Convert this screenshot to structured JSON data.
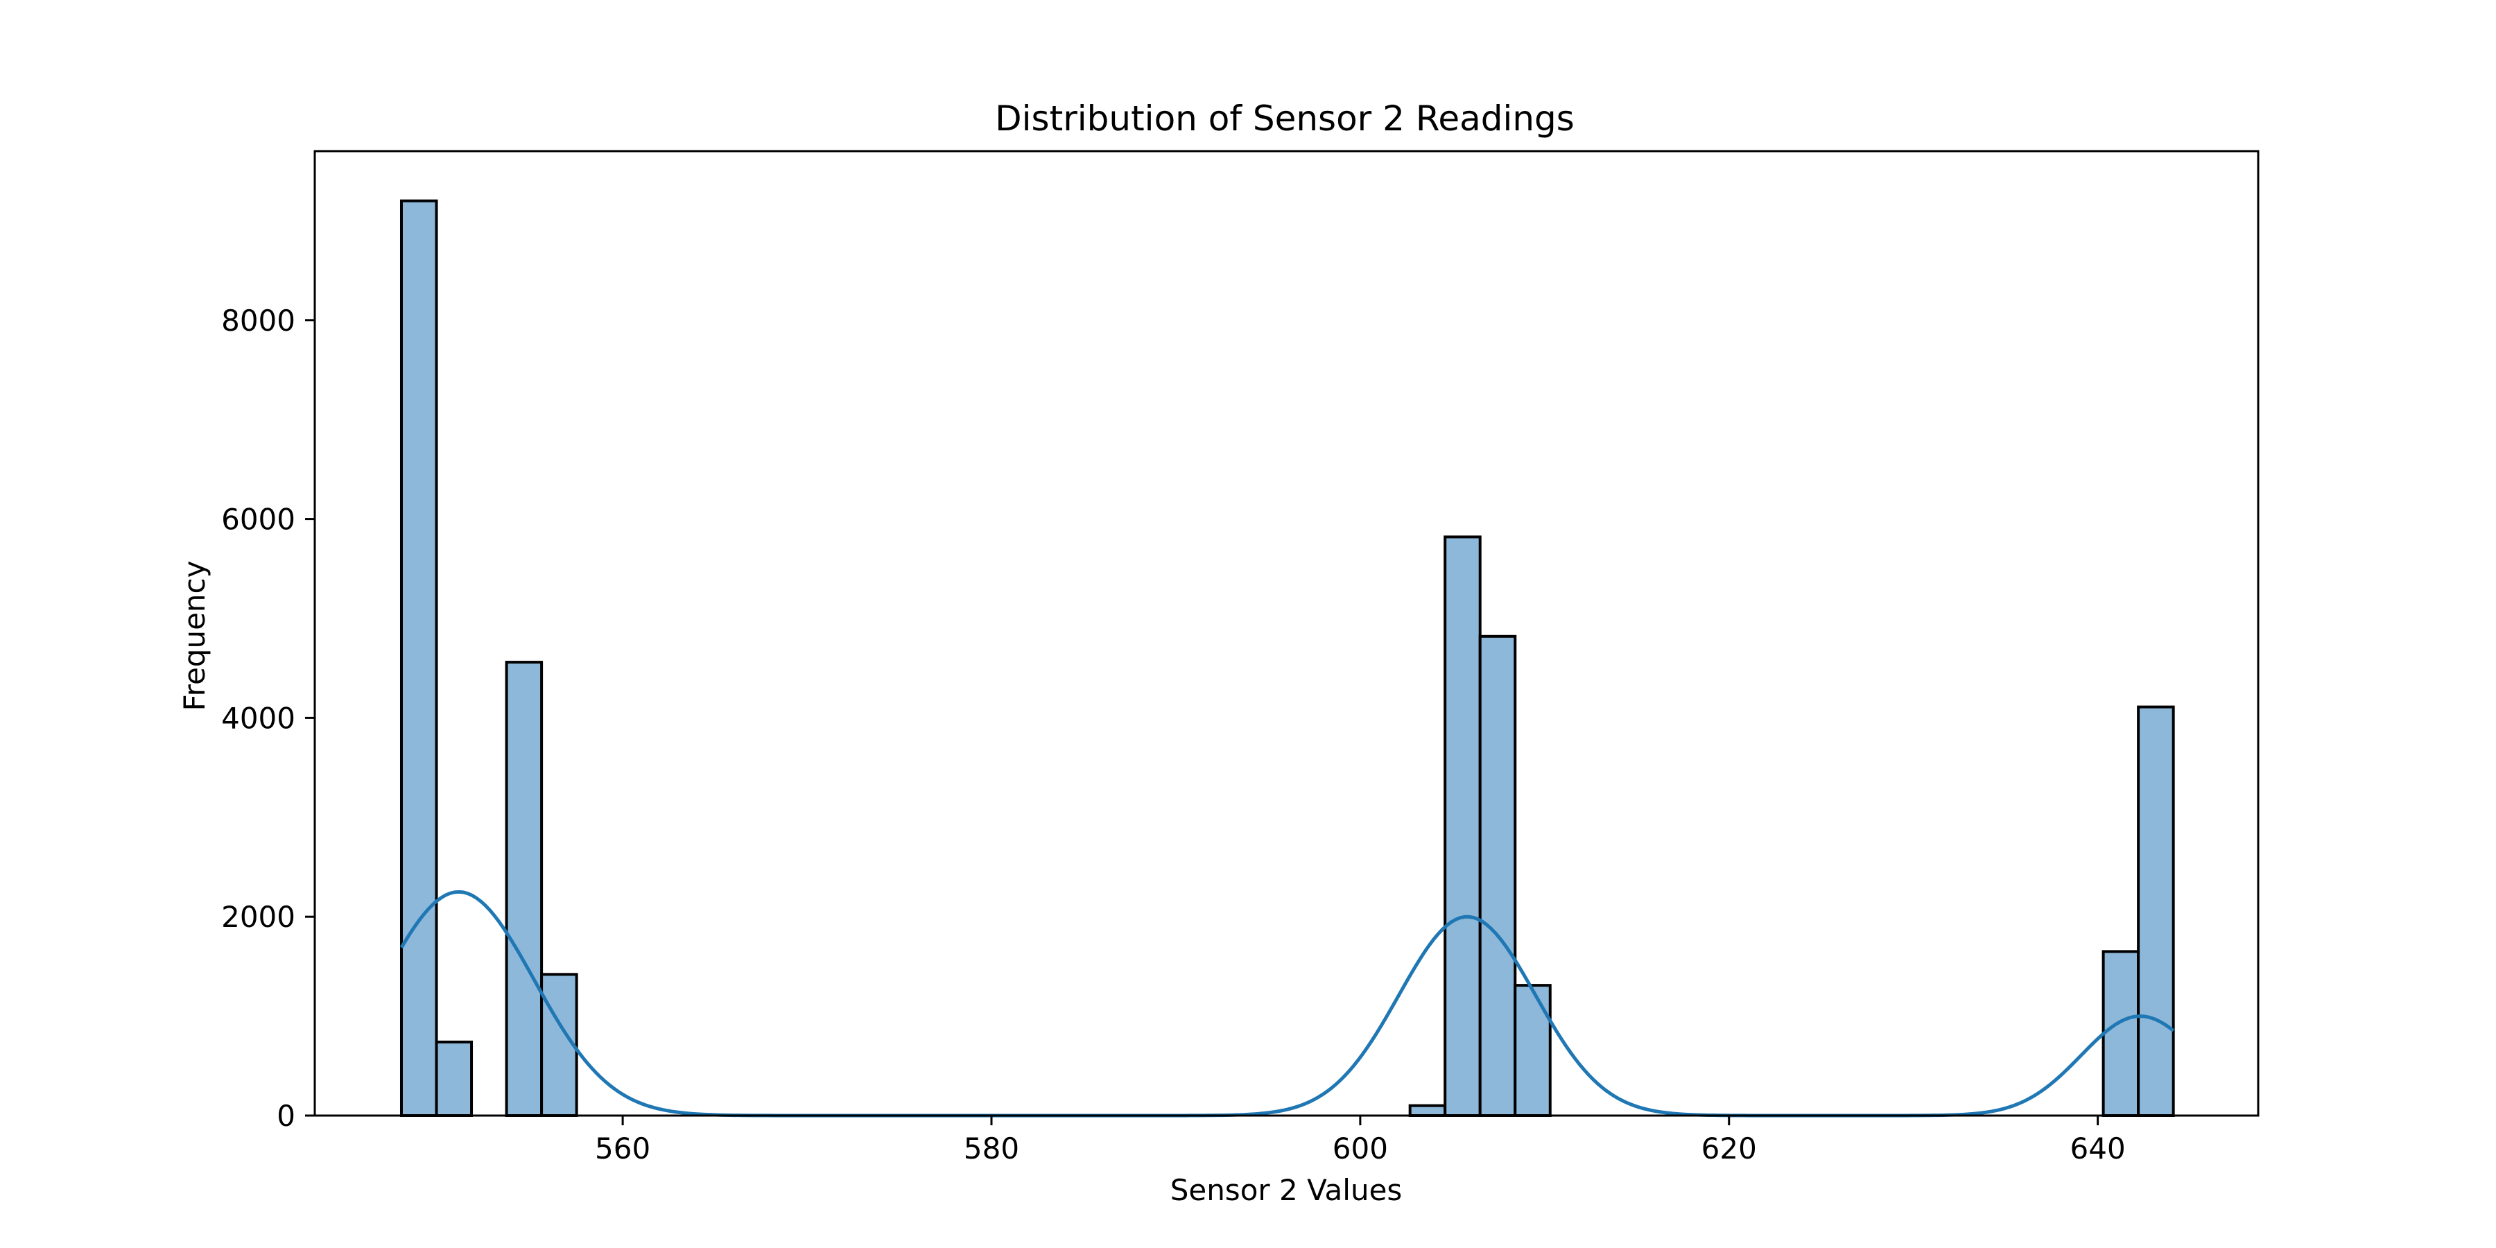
{
  "chart_data": {
    "type": "bar",
    "subtype": "histogram-with-kde",
    "title": "Distribution of Sensor 2 Readings",
    "xlabel": "Sensor 2 Values",
    "ylabel": "Frequency",
    "xlim": [
      543.3,
      648.7
    ],
    "ylim": [
      0,
      9700
    ],
    "xticks": [
      560,
      580,
      600,
      620,
      640
    ],
    "yticks": [
      0,
      2000,
      4000,
      6000,
      8000
    ],
    "grid": false,
    "legend": "none",
    "bar_fill": "#8db8da",
    "bar_edge": "#000000",
    "kde_color": "#1f77b4",
    "bins": [
      {
        "x0": 548.0,
        "x1": 549.9,
        "count": 9200
      },
      {
        "x0": 549.9,
        "x1": 551.8,
        "count": 740
      },
      {
        "x0": 553.7,
        "x1": 555.6,
        "count": 4560
      },
      {
        "x0": 555.6,
        "x1": 557.5,
        "count": 1420
      },
      {
        "x0": 602.7,
        "x1": 604.6,
        "count": 100
      },
      {
        "x0": 604.6,
        "x1": 606.5,
        "count": 5820
      },
      {
        "x0": 606.5,
        "x1": 608.4,
        "count": 4820
      },
      {
        "x0": 608.4,
        "x1": 610.3,
        "count": 1310
      },
      {
        "x0": 640.3,
        "x1": 642.2,
        "count": 1650
      },
      {
        "x0": 642.2,
        "x1": 644.1,
        "count": 4110
      }
    ],
    "kde": {
      "x_range": [
        548.0,
        644.1
      ],
      "components": [
        {
          "center": 551.1,
          "sigma": 4.1,
          "peak": 2250
        },
        {
          "center": 605.8,
          "sigma": 3.7,
          "peak": 2000
        },
        {
          "center": 642.3,
          "sigma": 3.2,
          "peak": 1000
        }
      ]
    }
  }
}
